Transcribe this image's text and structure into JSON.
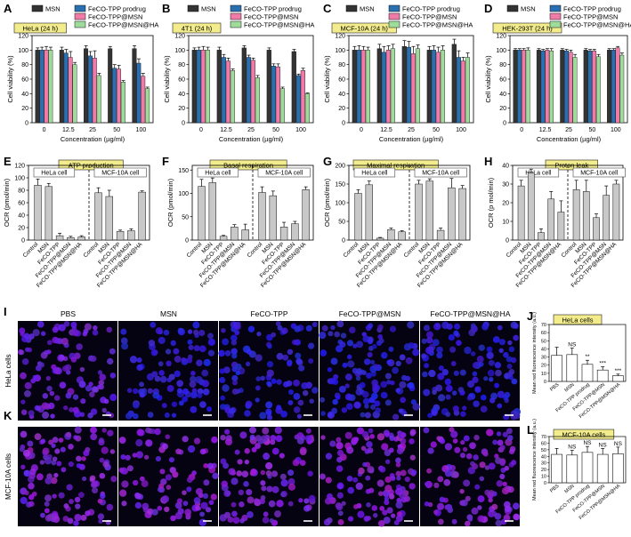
{
  "colors": {
    "MSN": "#333333",
    "FeCO-TPP prodrug": "#2a6fb0",
    "FeCO-TPP@MSN": "#f07aa8",
    "FeCO-TPP@MSN@HA": "#9fdc9c",
    "ocr_bar": "#c8c8c8",
    "fluor_bar": "#ffffff",
    "tag_fill": "#f2ec8c"
  },
  "chart_data": [
    {
      "type": "bar",
      "panel": "A",
      "tag": "HeLa (24 h)",
      "xlabel": "Concentration (µg/ml)",
      "ylabel": "Cell viability (%)",
      "ylim": [
        0,
        120
      ],
      "yticks": [
        0,
        20,
        40,
        60,
        80,
        100,
        120
      ],
      "categories": [
        "0",
        "12.5",
        "25",
        "50",
        "100"
      ],
      "legend": [
        "MSN",
        "FeCO-TPP prodrug",
        "FeCO-TPP@MSN",
        "FeCO-TPP@MSN@HA"
      ],
      "series": [
        {
          "name": "MSN",
          "values": [
            100,
            100,
            102,
            102,
            102
          ],
          "err": [
            3,
            4,
            4,
            3,
            4
          ]
        },
        {
          "name": "FeCO-TPP prodrug",
          "values": [
            100,
            96,
            92,
            75,
            82
          ],
          "err": [
            4,
            5,
            6,
            5,
            6
          ]
        },
        {
          "name": "FeCO-TPP@MSN",
          "values": [
            100,
            90,
            89,
            74,
            64
          ],
          "err": [
            5,
            8,
            10,
            5,
            4
          ]
        },
        {
          "name": "FeCO-TPP@MSN@HA",
          "values": [
            100,
            80,
            65,
            56,
            47
          ],
          "err": [
            4,
            3,
            3,
            2,
            2
          ]
        }
      ]
    },
    {
      "type": "bar",
      "panel": "B",
      "tag": "4T1 (24 h)",
      "xlabel": "Concentration (µg/ml)",
      "ylabel": "Cell viability (%)",
      "ylim": [
        0,
        120
      ],
      "yticks": [
        0,
        20,
        40,
        60,
        80,
        100,
        120
      ],
      "categories": [
        "0",
        "12.5",
        "25",
        "50",
        "100"
      ],
      "legend": [
        "MSN",
        "FeCO-TPP prodrug",
        "FeCO-TPP@MSN",
        "FeCO-TPP@MSN@HA"
      ],
      "series": [
        {
          "name": "MSN",
          "values": [
            100,
            100,
            103,
            100,
            98
          ],
          "err": [
            3,
            4,
            3,
            3,
            3
          ]
        },
        {
          "name": "FeCO-TPP prodrug",
          "values": [
            100,
            90,
            90,
            78,
            65
          ],
          "err": [
            4,
            4,
            3,
            3,
            2
          ]
        },
        {
          "name": "FeCO-TPP@MSN",
          "values": [
            100,
            85,
            86,
            77,
            72
          ],
          "err": [
            5,
            4,
            3,
            4,
            3
          ]
        },
        {
          "name": "FeCO-TPP@MSN@HA",
          "values": [
            100,
            72,
            62,
            47,
            40
          ],
          "err": [
            4,
            2,
            3,
            2,
            1
          ]
        }
      ]
    },
    {
      "type": "bar",
      "panel": "C",
      "tag": "MCF-10A (24 h)",
      "xlabel": "Concentration (µg/ml)",
      "ylabel": "Cell viability (%)",
      "ylim": [
        0,
        120
      ],
      "yticks": [
        0,
        20,
        40,
        60,
        80,
        100,
        120
      ],
      "categories": [
        "0",
        "12.5",
        "25",
        "50",
        "100"
      ],
      "legend": [
        "MSN",
        "FeCO-TPP prodrug",
        "FeCO-TPP@MSN",
        "FeCO-TPP@MSN@HA"
      ],
      "series": [
        {
          "name": "MSN",
          "values": [
            100,
            102,
            105,
            100,
            108
          ],
          "err": [
            5,
            6,
            8,
            5,
            7
          ]
        },
        {
          "name": "FeCO-TPP prodrug",
          "values": [
            100,
            97,
            104,
            100,
            90
          ],
          "err": [
            6,
            8,
            8,
            6,
            9
          ]
        },
        {
          "name": "FeCO-TPP@MSN",
          "values": [
            100,
            100,
            95,
            97,
            85
          ],
          "err": [
            5,
            6,
            10,
            7,
            5
          ]
        },
        {
          "name": "FeCO-TPP@MSN@HA",
          "values": [
            100,
            102,
            102,
            100,
            90
          ],
          "err": [
            4,
            6,
            5,
            6,
            6
          ]
        }
      ]
    },
    {
      "type": "bar",
      "panel": "D",
      "tag": "HEK-293T (24 h)",
      "xlabel": "Concentration (µg/ml)",
      "ylabel": "Cell viability (%)",
      "ylim": [
        0,
        120
      ],
      "yticks": [
        0,
        20,
        40,
        60,
        80,
        100,
        120
      ],
      "categories": [
        "0",
        "12.5",
        "25",
        "50",
        "100"
      ],
      "legend": [
        "MSN",
        "FeCO-TPP prodrug",
        "FeCO-TPP@MSN",
        "FeCO-TPP@MSN@HA"
      ],
      "series": [
        {
          "name": "MSN",
          "values": [
            100,
            100,
            100,
            100,
            100
          ],
          "err": [
            2,
            2,
            2,
            2,
            2
          ]
        },
        {
          "name": "FeCO-TPP prodrug",
          "values": [
            100,
            99,
            99,
            99,
            100
          ],
          "err": [
            2,
            2,
            2,
            2,
            2
          ]
        },
        {
          "name": "FeCO-TPP@MSN",
          "values": [
            100,
            100,
            97,
            99,
            103
          ],
          "err": [
            2,
            2,
            3,
            2,
            2
          ]
        },
        {
          "name": "FeCO-TPP@MSN@HA",
          "values": [
            100,
            99,
            90,
            91,
            93
          ],
          "err": [
            3,
            3,
            4,
            3,
            3
          ]
        }
      ]
    },
    {
      "type": "bar",
      "panel": "E",
      "tag": "ATP production",
      "ylabel": "OCR (pmol/min)",
      "ylim": [
        0,
        120
      ],
      "yticks": [
        0,
        20,
        40,
        60,
        80,
        100,
        120
      ],
      "groups": [
        "HeLa cell",
        "MCF-10A cell"
      ],
      "categories": [
        "Control",
        "MSN",
        "FeCO-TPP",
        "FeCO-TPP@MSN",
        "FeCO-TPP@MSN@HA"
      ],
      "values": [
        [
          88,
          86,
          7,
          4,
          5
        ],
        [
          76,
          70,
          14,
          15,
          77
        ]
      ],
      "err": [
        [
          10,
          5,
          4,
          2,
          2
        ],
        [
          8,
          10,
          2,
          3,
          2
        ]
      ]
    },
    {
      "type": "bar",
      "panel": "F",
      "tag": "Basal respiration",
      "ylabel": "OCR (pmol/min)",
      "ylim": [
        0,
        160
      ],
      "yticks": [
        0,
        50,
        100,
        150
      ],
      "groups": [
        "HeLa cell",
        "MCF-10A cell"
      ],
      "categories": [
        "Control",
        "MSN",
        "FeCO-TPP",
        "FeCO-TPP@MSN",
        "FeCO-TPP@MSN@HA"
      ],
      "values": [
        [
          115,
          123,
          8,
          28,
          22
        ],
        [
          102,
          95,
          28,
          35,
          108
        ]
      ],
      "err": [
        [
          15,
          10,
          2,
          5,
          12
        ],
        [
          12,
          10,
          10,
          5,
          6
        ]
      ]
    },
    {
      "type": "bar",
      "panel": "G",
      "tag": "Maximal respiration",
      "ylabel": "OCR (pmol/min)",
      "ylim": [
        0,
        200
      ],
      "yticks": [
        0,
        50,
        100,
        150,
        200
      ],
      "groups": [
        "HeLa cell",
        "MCF-10A cell"
      ],
      "categories": [
        "Control",
        "MSN",
        "FeCO-TPP",
        "FeCO-TPP@MSN",
        "FeCO-TPP@MSN@HA"
      ],
      "values": [
        [
          125,
          148,
          5,
          28,
          22
        ],
        [
          150,
          158,
          26,
          140,
          138
        ]
      ],
      "err": [
        [
          10,
          10,
          2,
          4,
          3
        ],
        [
          10,
          6,
          6,
          25,
          8
        ]
      ]
    },
    {
      "type": "bar",
      "panel": "H",
      "tag": "Proton leak",
      "ylabel": "OCR (p mol/min)",
      "ylim": [
        0,
        40
      ],
      "yticks": [
        0,
        10,
        20,
        30,
        40
      ],
      "groups": [
        "HeLa cell",
        "MCF-10A cell"
      ],
      "categories": [
        "Control",
        "MSN",
        "FeCO-TPP",
        "FeCO-TPP@MSN",
        "FeCO-TPP@MSN@HA"
      ],
      "values": [
        [
          29,
          36,
          4,
          22,
          15
        ],
        [
          27,
          26,
          12,
          24,
          30
        ]
      ],
      "err": [
        [
          3,
          2,
          2,
          4,
          6
        ],
        [
          5,
          6,
          2,
          5,
          2
        ]
      ]
    },
    {
      "type": "bar",
      "panel": "J",
      "tag": "HeLa cells",
      "ylabel": "Mean red fluorescence intensity (a.u.)",
      "ylim": [
        0,
        70
      ],
      "yticks": [
        0,
        10,
        20,
        30,
        40,
        50,
        60,
        70
      ],
      "categories": [
        "PBS",
        "MSN",
        "FeCO-TPP prodrug",
        "FeCO-TPP@MSN",
        "FeCO-TPP@MSN@HA"
      ],
      "values": [
        32,
        33,
        21,
        14,
        7
      ],
      "err": [
        10,
        8,
        5,
        4,
        2
      ],
      "annotations": [
        "",
        "NS",
        "**",
        "***",
        "***"
      ]
    },
    {
      "type": "bar",
      "panel": "L",
      "tag": "MCF-10A cells",
      "ylabel": "Mean red fluorescence intensity (a.u.)",
      "ylim": [
        0,
        70
      ],
      "yticks": [
        0,
        10,
        20,
        30,
        40,
        50,
        60,
        70
      ],
      "categories": [
        "PBS",
        "MSN",
        "FeCO-TPP prodrug",
        "FeCO-TPP@MSN",
        "FeCO-TPP@MSN@HA"
      ],
      "values": [
        43,
        42,
        46,
        43,
        44
      ],
      "err": [
        9,
        7,
        9,
        9,
        10
      ],
      "annotations": [
        "",
        "NS",
        "NS",
        "NS",
        "NS"
      ]
    }
  ],
  "micrographs": {
    "columns": [
      "PBS",
      "MSN",
      "FeCO-TPP",
      "FeCO-TPP@MSN",
      "FeCO-TPP@MSN@HA"
    ],
    "rows": [
      {
        "panel": "I",
        "label": "HeLa cells"
      },
      {
        "panel": "K",
        "label": "MCF-10A cells"
      }
    ]
  }
}
